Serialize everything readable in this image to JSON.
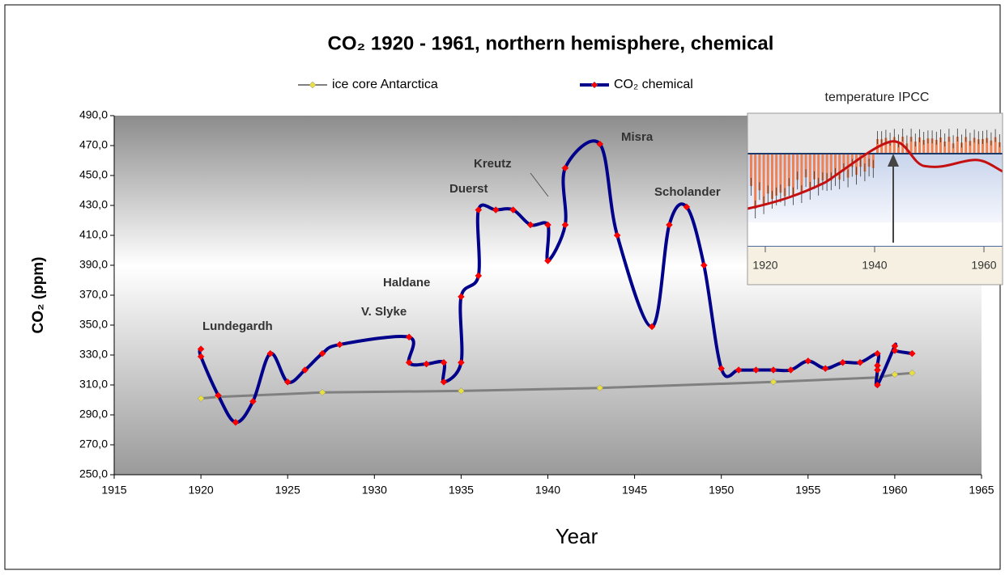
{
  "chart_data": {
    "type": "line",
    "title": "CO₂ 1920 - 1961, northern hemisphere, chemical",
    "x_label": "Year",
    "y_label": "CO₂ (ppm)",
    "xlim": [
      1915,
      1965
    ],
    "xticks": [
      1915,
      1920,
      1925,
      1930,
      1935,
      1940,
      1945,
      1950,
      1955,
      1960,
      1965
    ],
    "ylim": [
      250,
      490
    ],
    "yticks": [
      {
        "value": 250,
        "label": "250,0"
      },
      {
        "value": 270,
        "label": "270,0"
      },
      {
        "value": 290,
        "label": "290,0"
      },
      {
        "value": 310,
        "label": "310,0"
      },
      {
        "value": 330,
        "label": "330,0"
      },
      {
        "value": 350,
        "label": "350,0"
      },
      {
        "value": 370,
        "label": "370,0"
      },
      {
        "value": 390,
        "label": "390,0"
      },
      {
        "value": 410,
        "label": "410,0"
      },
      {
        "value": 430,
        "label": "430,0"
      },
      {
        "value": 450,
        "label": "450,0"
      },
      {
        "value": 470,
        "label": "470,0"
      },
      {
        "value": 490,
        "label": "490,0"
      }
    ],
    "legend": "top",
    "series": [
      {
        "name": "ice core Antarctica",
        "color": "#808080",
        "marker_color": "#e8e040",
        "x": [
          1920,
          1921,
          1927,
          1935,
          1943,
          1953,
          1959,
          1960,
          1961
        ],
        "values": [
          301,
          302,
          305,
          306,
          308,
          312,
          315,
          317,
          318
        ]
      },
      {
        "name": "CO₂ chemical",
        "color": "#00008b",
        "marker_color": "#ff0000",
        "x": [
          1920,
          1920,
          1921,
          1922,
          1923,
          1924,
          1925,
          1926,
          1927,
          1928,
          1932,
          1932,
          1933,
          1934,
          1934,
          1935,
          1935,
          1936,
          1936,
          1937,
          1938,
          1939,
          1940,
          1940,
          1941,
          1941,
          1943,
          1944,
          1946,
          1947,
          1948,
          1949,
          1950,
          1951,
          1952,
          1953,
          1954,
          1955,
          1956,
          1957,
          1958,
          1959,
          1959,
          1959,
          1959,
          1960,
          1960,
          1961
        ],
        "values": [
          334,
          329,
          303,
          285,
          299,
          331,
          312,
          320,
          331,
          337,
          342,
          325,
          324,
          325,
          312,
          325,
          369,
          383,
          427,
          427,
          427,
          417,
          417,
          393,
          417,
          455,
          471,
          410,
          349,
          417,
          429,
          390,
          321,
          320,
          320,
          320,
          320,
          326,
          321,
          325,
          325,
          331,
          323,
          320,
          310,
          336,
          333,
          331
        ]
      }
    ],
    "annotations": [
      "Lundegardh",
      "V. Slyke",
      "Haldane",
      "Duerst",
      "Kreutz",
      "Misra",
      "Scholander"
    ],
    "inset": {
      "title": "temperature IPCC",
      "xticks": [
        1920,
        1940,
        1960
      ]
    }
  }
}
